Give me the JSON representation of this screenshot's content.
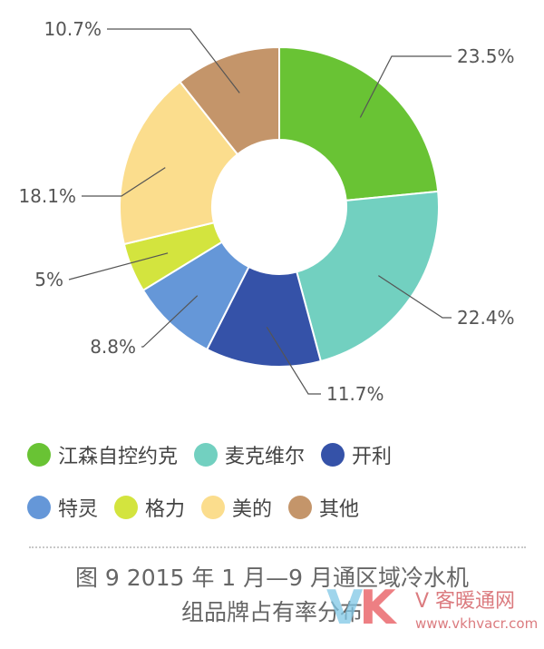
{
  "chart_data": {
    "type": "pie",
    "donut": true,
    "slices": [
      {
        "label": "江森自控约克",
        "value": 23.5,
        "value_label": "23.5%",
        "color": "#69c334"
      },
      {
        "label": "麦克维尔",
        "value": 22.4,
        "value_label": "22.4%",
        "color": "#72d0c0"
      },
      {
        "label": "开利",
        "value": 11.7,
        "value_label": "11.7%",
        "color": "#3552a8"
      },
      {
        "label": "特灵",
        "value": 8.8,
        "value_label": "8.8%",
        "color": "#6597d8"
      },
      {
        "label": "格力",
        "value": 5,
        "value_label": "5%",
        "color": "#d3e43e"
      },
      {
        "label": "美的",
        "value": 18.1,
        "value_label": "18.1%",
        "color": "#fbdd8d"
      },
      {
        "label": "其他",
        "value": 10.7,
        "value_label": "10.7%",
        "color": "#c4956a"
      }
    ],
    "legend_position": "bottom"
  },
  "legend": {
    "rows": [
      [
        "江森自控约克",
        "麦克维尔",
        "开利"
      ],
      [
        "特灵",
        "格力",
        "美的",
        "其他"
      ]
    ]
  },
  "caption": {
    "line1": "图 9   2015 年 1 月—9 月通区域冷水机",
    "line2": "组品牌占有率分布"
  },
  "watermark": {
    "logo_v": "V",
    "logo_k": "K",
    "name": "V 客暖通网",
    "url": "www.vkhvacr.com"
  }
}
